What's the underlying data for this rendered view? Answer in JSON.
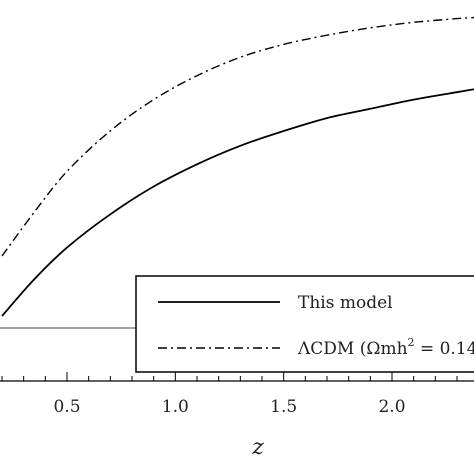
{
  "chart_data": {
    "type": "line",
    "xlabel": "z",
    "ylabel": "",
    "title": "",
    "xlim": [
      0.2,
      2.45
    ],
    "ylim": [
      0,
      1
    ],
    "x_ticks": [
      0.5,
      1.0,
      1.5,
      2.0
    ],
    "x_tick_labels": [
      "0.5",
      "1.0",
      "1.5",
      "2.0"
    ],
    "grid": false,
    "legend_position": "bottom-right",
    "reference_line_y": 0.245,
    "series": [
      {
        "name": "This model",
        "style": "solid",
        "x": [
          0.2,
          0.35,
          0.5,
          0.7,
          0.9,
          1.1,
          1.3,
          1.5,
          1.7,
          1.9,
          2.1,
          2.3,
          2.45
        ],
        "y": [
          0.18,
          0.28,
          0.365,
          0.455,
          0.53,
          0.59,
          0.64,
          0.68,
          0.715,
          0.74,
          0.765,
          0.785,
          0.8
        ]
      },
      {
        "name": "ΛCDM (Ωmh² = 0.14",
        "style": "dashdot",
        "x": [
          0.2,
          0.35,
          0.5,
          0.7,
          0.9,
          1.1,
          1.3,
          1.5,
          1.7,
          1.9,
          2.1,
          2.3,
          2.45
        ],
        "y": [
          0.33,
          0.45,
          0.56,
          0.67,
          0.755,
          0.82,
          0.87,
          0.905,
          0.93,
          0.95,
          0.965,
          0.975,
          0.98
        ]
      }
    ],
    "legend": {
      "entries": [
        {
          "label": "This model",
          "style": "solid"
        },
        {
          "label_main": "ΛCDM (Ωmh",
          "label_sup": "2",
          "label_tail": " = 0.14",
          "style": "dashdot"
        }
      ]
    }
  }
}
